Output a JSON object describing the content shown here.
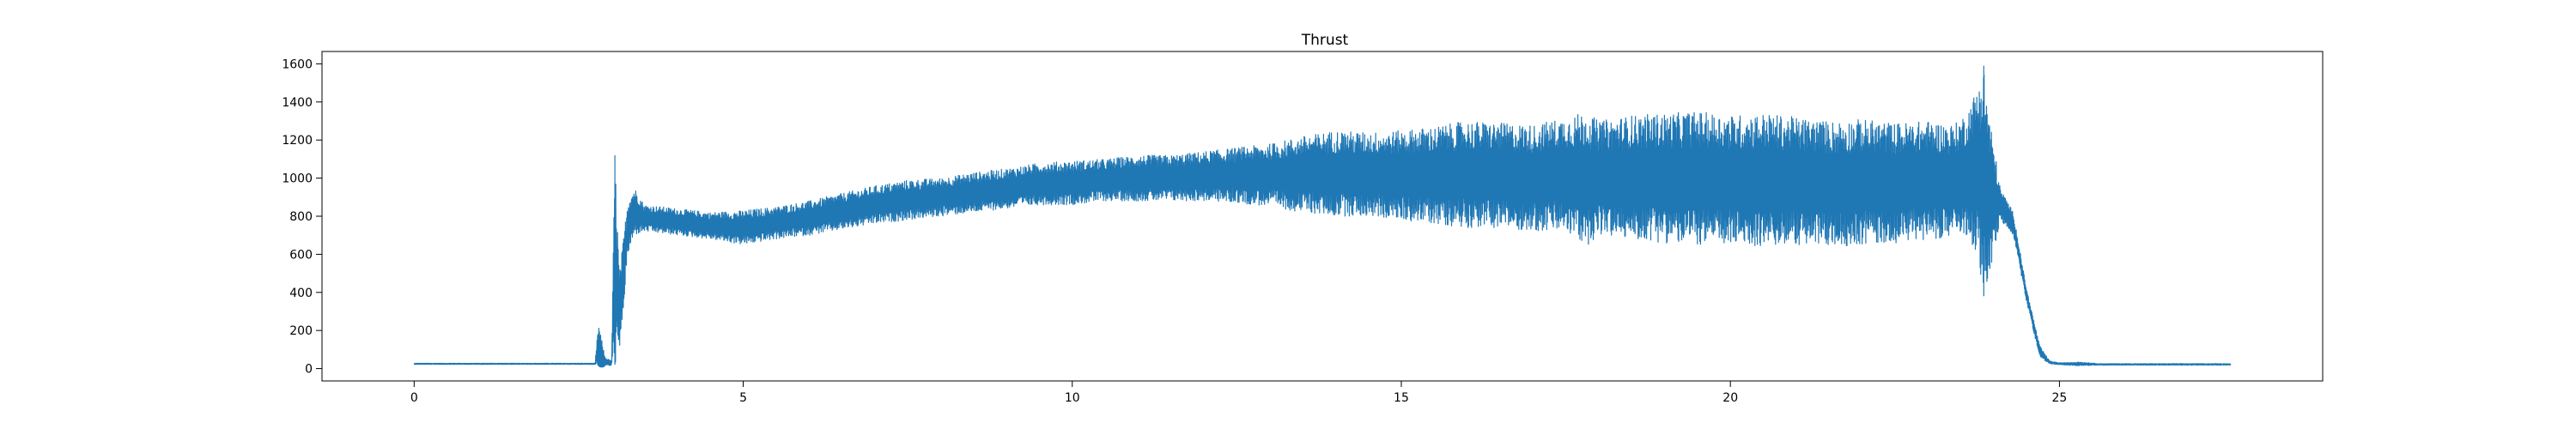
{
  "chart_data": {
    "type": "line",
    "title": "Thrust",
    "xlabel": "",
    "ylabel": "",
    "xlim": [
      -1.4,
      29.0
    ],
    "ylim": [
      -65,
      1665
    ],
    "xticks": [
      0,
      5,
      10,
      15,
      20,
      25
    ],
    "yticks": [
      0,
      200,
      400,
      600,
      800,
      1000,
      1200,
      1400,
      1600
    ],
    "grid": false,
    "legend": "none",
    "line_color": "#1f77b4",
    "marker": {
      "x": 2.85,
      "y": 30
    },
    "envelope": {
      "columns": [
        "t",
        "low",
        "high"
      ],
      "points": [
        [
          0.0,
          22,
          28
        ],
        [
          2.75,
          22,
          28
        ],
        [
          2.8,
          18,
          240
        ],
        [
          2.9,
          15,
          60
        ],
        [
          3.0,
          15,
          40
        ],
        [
          3.05,
          20,
          1120
        ],
        [
          3.12,
          60,
          500
        ],
        [
          3.25,
          600,
          900
        ],
        [
          3.35,
          700,
          950
        ],
        [
          3.5,
          720,
          860
        ],
        [
          4.0,
          700,
          840
        ],
        [
          4.5,
          680,
          820
        ],
        [
          5.0,
          650,
          830
        ],
        [
          5.5,
          680,
          850
        ],
        [
          6.0,
          700,
          880
        ],
        [
          6.5,
          730,
          920
        ],
        [
          7.0,
          760,
          960
        ],
        [
          7.5,
          780,
          990
        ],
        [
          8.0,
          800,
          1000
        ],
        [
          8.5,
          820,
          1030
        ],
        [
          9.0,
          840,
          1050
        ],
        [
          9.5,
          860,
          1080
        ],
        [
          10.0,
          860,
          1090
        ],
        [
          10.5,
          880,
          1100
        ],
        [
          11.0,
          880,
          1120
        ],
        [
          11.5,
          880,
          1120
        ],
        [
          12.0,
          880,
          1140
        ],
        [
          12.5,
          870,
          1160
        ],
        [
          13.0,
          850,
          1180
        ],
        [
          13.5,
          820,
          1220
        ],
        [
          14.0,
          800,
          1250
        ],
        [
          14.5,
          800,
          1240
        ],
        [
          15.0,
          780,
          1250
        ],
        [
          15.5,
          760,
          1270
        ],
        [
          16.0,
          740,
          1300
        ],
        [
          16.5,
          740,
          1290
        ],
        [
          17.0,
          720,
          1280
        ],
        [
          17.5,
          720,
          1320
        ],
        [
          17.8,
          640,
          1350
        ],
        [
          18.0,
          700,
          1300
        ],
        [
          18.5,
          680,
          1330
        ],
        [
          19.0,
          660,
          1340
        ],
        [
          19.5,
          650,
          1350
        ],
        [
          20.0,
          650,
          1330
        ],
        [
          20.5,
          640,
          1340
        ],
        [
          21.0,
          650,
          1320
        ],
        [
          21.5,
          640,
          1300
        ],
        [
          22.0,
          650,
          1310
        ],
        [
          22.5,
          660,
          1290
        ],
        [
          23.0,
          680,
          1300
        ],
        [
          23.4,
          690,
          1280
        ],
        [
          23.6,
          700,
          1350
        ],
        [
          23.75,
          600,
          1480
        ],
        [
          23.85,
          380,
          1590
        ],
        [
          23.95,
          500,
          1300
        ],
        [
          24.1,
          780,
          950
        ],
        [
          24.3,
          700,
          820
        ],
        [
          24.5,
          350,
          420
        ],
        [
          24.7,
          60,
          120
        ],
        [
          24.85,
          25,
          40
        ],
        [
          25.0,
          20,
          30
        ],
        [
          25.3,
          15,
          35
        ],
        [
          25.6,
          18,
          26
        ],
        [
          27.6,
          18,
          26
        ]
      ]
    }
  }
}
